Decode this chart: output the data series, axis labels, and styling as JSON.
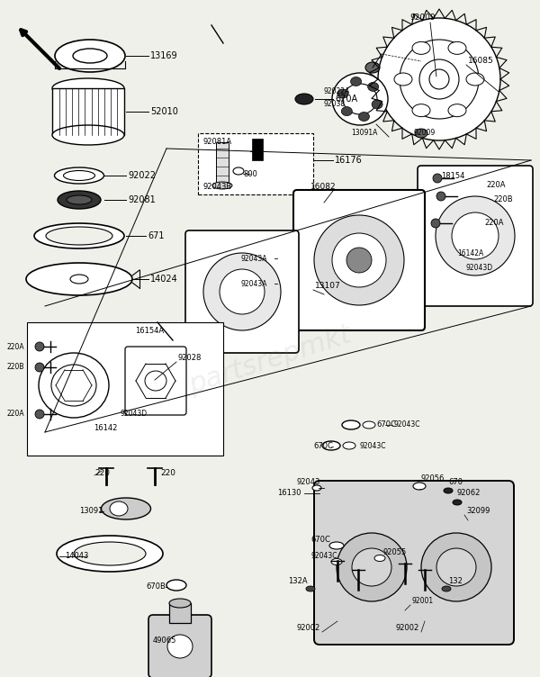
{
  "bg_color": "#f0f0eb",
  "fig_w": 6.0,
  "fig_h": 7.52,
  "dpi": 100,
  "xlim": [
    0,
    600
  ],
  "ylim": [
    0,
    752
  ]
}
